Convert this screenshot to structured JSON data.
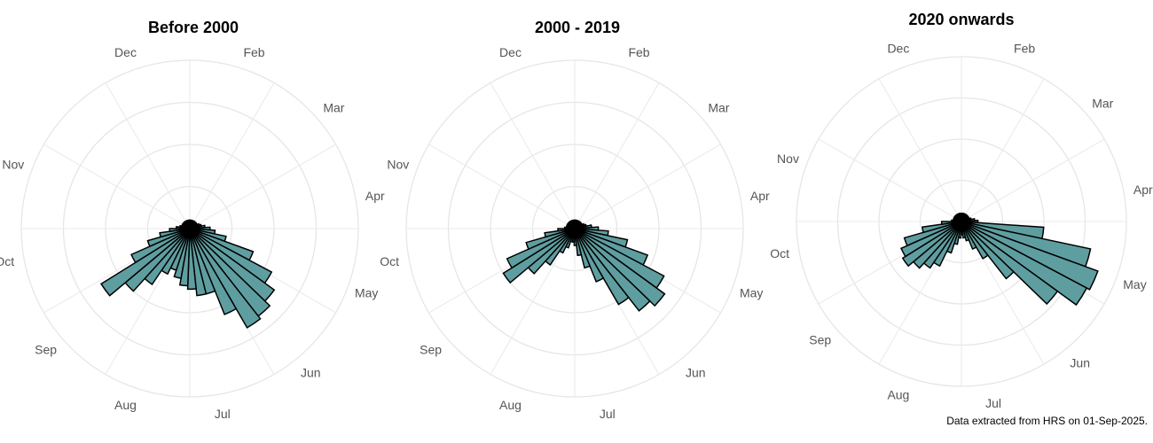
{
  "footnote": "Data extracted from HRS on 01-Sep-2025.",
  "colors": {
    "bar_fill": "#5f9ea0",
    "bar_outline": "#000000",
    "grid": "#e6e6e6",
    "month_label": "#555555"
  },
  "chart_data": [
    {
      "type": "bar",
      "coordinate_system": "polar",
      "title": "Before 2000",
      "angle_labels": [
        "Dec",
        "Feb",
        "Mar",
        "Apr",
        "May",
        "Jun",
        "Jul",
        "Aug",
        "Sep",
        "Oct",
        "Nov"
      ],
      "label_angles_deg": [
        -20,
        20,
        50,
        80,
        110,
        140,
        170,
        200,
        230,
        260,
        290
      ],
      "bars": [
        {
          "angle_deg": 90,
          "value": 0.12
        },
        {
          "angle_deg": 98,
          "value": 0.15
        },
        {
          "angle_deg": 106,
          "value": 0.22
        },
        {
          "angle_deg": 114,
          "value": 0.4
        },
        {
          "angle_deg": 122,
          "value": 0.55
        },
        {
          "angle_deg": 130,
          "value": 0.62
        },
        {
          "angle_deg": 138,
          "value": 0.66
        },
        {
          "angle_deg": 146,
          "value": 0.68
        },
        {
          "angle_deg": 154,
          "value": 0.55
        },
        {
          "angle_deg": 162,
          "value": 0.4
        },
        {
          "angle_deg": 170,
          "value": 0.4
        },
        {
          "angle_deg": 178,
          "value": 0.36
        },
        {
          "angle_deg": 186,
          "value": 0.34
        },
        {
          "angle_deg": 194,
          "value": 0.3
        },
        {
          "angle_deg": 202,
          "value": 0.26
        },
        {
          "angle_deg": 210,
          "value": 0.3
        },
        {
          "angle_deg": 218,
          "value": 0.4
        },
        {
          "angle_deg": 226,
          "value": 0.5
        },
        {
          "angle_deg": 234,
          "value": 0.62
        },
        {
          "angle_deg": 242,
          "value": 0.38
        },
        {
          "angle_deg": 250,
          "value": 0.26
        },
        {
          "angle_deg": 258,
          "value": 0.18
        },
        {
          "angle_deg": 266,
          "value": 0.12
        },
        {
          "angle_deg": 274,
          "value": 0.08
        },
        {
          "angle_deg": 282,
          "value": 0.06
        },
        {
          "angle_deg": 290,
          "value": 0.05
        },
        {
          "angle_deg": 298,
          "value": 0.05
        },
        {
          "angle_deg": 306,
          "value": 0.05
        },
        {
          "angle_deg": 314,
          "value": 0.05
        },
        {
          "angle_deg": 322,
          "value": 0.05
        },
        {
          "angle_deg": 330,
          "value": 0.05
        },
        {
          "angle_deg": 338,
          "value": 0.05
        },
        {
          "angle_deg": 346,
          "value": 0.05
        },
        {
          "angle_deg": 354,
          "value": 0.05
        },
        {
          "angle_deg": 2,
          "value": 0.05
        },
        {
          "angle_deg": 10,
          "value": 0.05
        },
        {
          "angle_deg": 18,
          "value": 0.05
        },
        {
          "angle_deg": 26,
          "value": 0.05
        },
        {
          "angle_deg": 34,
          "value": 0.05
        },
        {
          "angle_deg": 42,
          "value": 0.05
        },
        {
          "angle_deg": 50,
          "value": 0.05
        },
        {
          "angle_deg": 58,
          "value": 0.05
        },
        {
          "angle_deg": 66,
          "value": 0.06
        },
        {
          "angle_deg": 74,
          "value": 0.07
        },
        {
          "angle_deg": 82,
          "value": 0.09
        }
      ]
    },
    {
      "type": "bar",
      "coordinate_system": "polar",
      "title": "2000 - 2019",
      "angle_labels": [
        "Dec",
        "Feb",
        "Mar",
        "Apr",
        "May",
        "Jun",
        "Jul",
        "Aug",
        "Sep",
        "Oct",
        "Nov"
      ],
      "label_angles_deg": [
        -20,
        20,
        50,
        80,
        110,
        140,
        170,
        200,
        230,
        260,
        290
      ],
      "bars": [
        {
          "angle_deg": 90,
          "value": 0.14
        },
        {
          "angle_deg": 98,
          "value": 0.2
        },
        {
          "angle_deg": 106,
          "value": 0.32
        },
        {
          "angle_deg": 114,
          "value": 0.46
        },
        {
          "angle_deg": 122,
          "value": 0.6
        },
        {
          "angle_deg": 130,
          "value": 0.66
        },
        {
          "angle_deg": 138,
          "value": 0.62
        },
        {
          "angle_deg": 146,
          "value": 0.52
        },
        {
          "angle_deg": 154,
          "value": 0.34
        },
        {
          "angle_deg": 162,
          "value": 0.24
        },
        {
          "angle_deg": 170,
          "value": 0.16
        },
        {
          "angle_deg": 178,
          "value": 0.1
        },
        {
          "angle_deg": 186,
          "value": 0.08
        },
        {
          "angle_deg": 194,
          "value": 0.08
        },
        {
          "angle_deg": 202,
          "value": 0.12
        },
        {
          "angle_deg": 210,
          "value": 0.16
        },
        {
          "angle_deg": 218,
          "value": 0.26
        },
        {
          "angle_deg": 226,
          "value": 0.36
        },
        {
          "angle_deg": 234,
          "value": 0.5
        },
        {
          "angle_deg": 242,
          "value": 0.44
        },
        {
          "angle_deg": 250,
          "value": 0.3
        },
        {
          "angle_deg": 258,
          "value": 0.18
        },
        {
          "angle_deg": 266,
          "value": 0.1
        },
        {
          "angle_deg": 274,
          "value": 0.06
        },
        {
          "angle_deg": 282,
          "value": 0.05
        },
        {
          "angle_deg": 290,
          "value": 0.05
        },
        {
          "angle_deg": 298,
          "value": 0.05
        },
        {
          "angle_deg": 306,
          "value": 0.05
        },
        {
          "angle_deg": 314,
          "value": 0.05
        },
        {
          "angle_deg": 322,
          "value": 0.05
        },
        {
          "angle_deg": 330,
          "value": 0.05
        },
        {
          "angle_deg": 338,
          "value": 0.05
        },
        {
          "angle_deg": 346,
          "value": 0.05
        },
        {
          "angle_deg": 354,
          "value": 0.05
        },
        {
          "angle_deg": 2,
          "value": 0.05
        },
        {
          "angle_deg": 10,
          "value": 0.05
        },
        {
          "angle_deg": 18,
          "value": 0.05
        },
        {
          "angle_deg": 26,
          "value": 0.05
        },
        {
          "angle_deg": 34,
          "value": 0.05
        },
        {
          "angle_deg": 42,
          "value": 0.05
        },
        {
          "angle_deg": 50,
          "value": 0.05
        },
        {
          "angle_deg": 58,
          "value": 0.05
        },
        {
          "angle_deg": 66,
          "value": 0.06
        },
        {
          "angle_deg": 74,
          "value": 0.07
        },
        {
          "angle_deg": 82,
          "value": 0.1
        }
      ]
    },
    {
      "type": "bar",
      "coordinate_system": "polar",
      "title": "2020 onwards",
      "angle_labels": [
        "Dec",
        "Feb",
        "Mar",
        "Apr",
        "May",
        "Jun",
        "Jul",
        "Aug",
        "Sep",
        "Oct",
        "Nov"
      ],
      "label_angles_deg": [
        -20,
        20,
        50,
        80,
        110,
        140,
        170,
        200,
        230,
        260,
        290
      ],
      "bars": [
        {
          "angle_deg": 90,
          "value": 0.1
        },
        {
          "angle_deg": 98,
          "value": 0.5
        },
        {
          "angle_deg": 106,
          "value": 0.8
        },
        {
          "angle_deg": 114,
          "value": 0.88
        },
        {
          "angle_deg": 122,
          "value": 0.86
        },
        {
          "angle_deg": 130,
          "value": 0.72
        },
        {
          "angle_deg": 138,
          "value": 0.44
        },
        {
          "angle_deg": 146,
          "value": 0.26
        },
        {
          "angle_deg": 154,
          "value": 0.18
        },
        {
          "angle_deg": 162,
          "value": 0.12
        },
        {
          "angle_deg": 170,
          "value": 0.1
        },
        {
          "angle_deg": 178,
          "value": 0.08
        },
        {
          "angle_deg": 186,
          "value": 0.1
        },
        {
          "angle_deg": 194,
          "value": 0.14
        },
        {
          "angle_deg": 202,
          "value": 0.2
        },
        {
          "angle_deg": 210,
          "value": 0.3
        },
        {
          "angle_deg": 218,
          "value": 0.34
        },
        {
          "angle_deg": 226,
          "value": 0.38
        },
        {
          "angle_deg": 234,
          "value": 0.42
        },
        {
          "angle_deg": 242,
          "value": 0.4
        },
        {
          "angle_deg": 250,
          "value": 0.36
        },
        {
          "angle_deg": 258,
          "value": 0.24
        },
        {
          "angle_deg": 266,
          "value": 0.12
        },
        {
          "angle_deg": 274,
          "value": 0.06
        },
        {
          "angle_deg": 282,
          "value": 0.05
        },
        {
          "angle_deg": 290,
          "value": 0.05
        },
        {
          "angle_deg": 298,
          "value": 0.05
        },
        {
          "angle_deg": 306,
          "value": 0.05
        },
        {
          "angle_deg": 314,
          "value": 0.05
        },
        {
          "angle_deg": 322,
          "value": 0.05
        },
        {
          "angle_deg": 330,
          "value": 0.05
        },
        {
          "angle_deg": 338,
          "value": 0.05
        },
        {
          "angle_deg": 346,
          "value": 0.05
        },
        {
          "angle_deg": 354,
          "value": 0.05
        },
        {
          "angle_deg": 2,
          "value": 0.05
        },
        {
          "angle_deg": 10,
          "value": 0.05
        },
        {
          "angle_deg": 18,
          "value": 0.05
        },
        {
          "angle_deg": 26,
          "value": 0.05
        },
        {
          "angle_deg": 34,
          "value": 0.05
        },
        {
          "angle_deg": 42,
          "value": 0.05
        },
        {
          "angle_deg": 50,
          "value": 0.05
        },
        {
          "angle_deg": 58,
          "value": 0.05
        },
        {
          "angle_deg": 66,
          "value": 0.05
        },
        {
          "angle_deg": 74,
          "value": 0.06
        },
        {
          "angle_deg": 82,
          "value": 0.08
        }
      ],
      "grid": true
    }
  ]
}
